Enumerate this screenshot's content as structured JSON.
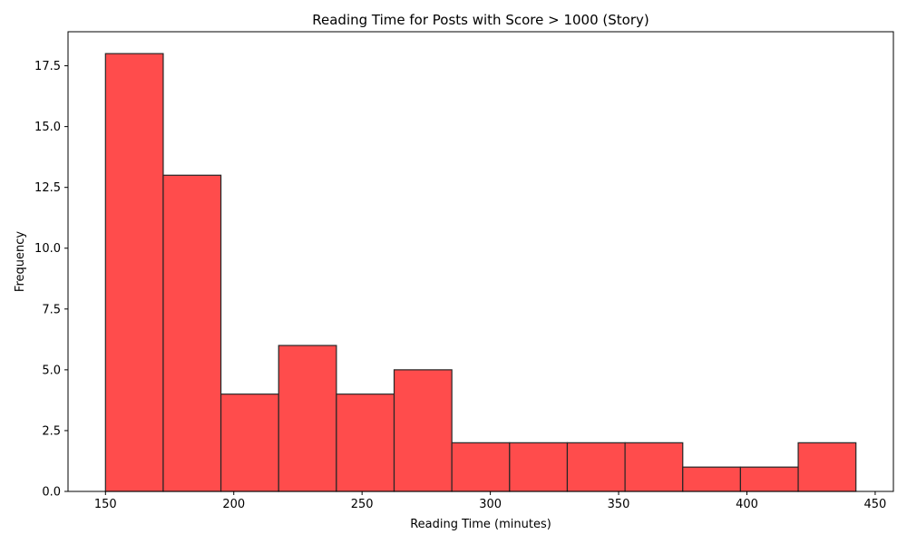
{
  "chart_data": {
    "type": "bar",
    "title": "Reading Time for Posts with Score > 1000 (Story)",
    "xlabel": "Reading Time (minutes)",
    "ylabel": "Frequency",
    "bins": [
      {
        "start": 150.0,
        "end": 172.5,
        "value": 18
      },
      {
        "start": 172.5,
        "end": 195.0,
        "value": 13
      },
      {
        "start": 195.0,
        "end": 217.5,
        "value": 4
      },
      {
        "start": 217.5,
        "end": 240.0,
        "value": 6
      },
      {
        "start": 240.0,
        "end": 262.5,
        "value": 4
      },
      {
        "start": 262.5,
        "end": 285.0,
        "value": 5
      },
      {
        "start": 285.0,
        "end": 307.5,
        "value": 2
      },
      {
        "start": 307.5,
        "end": 330.0,
        "value": 2
      },
      {
        "start": 330.0,
        "end": 352.5,
        "value": 2
      },
      {
        "start": 352.5,
        "end": 375.0,
        "value": 2
      },
      {
        "start": 375.0,
        "end": 397.5,
        "value": 1
      },
      {
        "start": 397.5,
        "end": 420.0,
        "value": 1
      },
      {
        "start": 420.0,
        "end": 442.5,
        "value": 2
      }
    ],
    "xlim": [
      135.4,
      457.1
    ],
    "ylim": [
      0,
      18.9
    ],
    "xticks": [
      150,
      200,
      250,
      300,
      350,
      400,
      450
    ],
    "xtick_labels": [
      "150",
      "200",
      "250",
      "300",
      "350",
      "400",
      "450"
    ],
    "yticks": [
      0,
      2.5,
      5,
      7.5,
      10,
      12.5,
      15,
      17.5
    ],
    "ytick_labels": [
      "0.0",
      "2.5",
      "5.0",
      "7.5",
      "10.0",
      "12.5",
      "15.0",
      "17.5"
    ],
    "bar_color": "#ff4c4c",
    "edge_color": "#262626",
    "grid": false,
    "legend": "none"
  }
}
